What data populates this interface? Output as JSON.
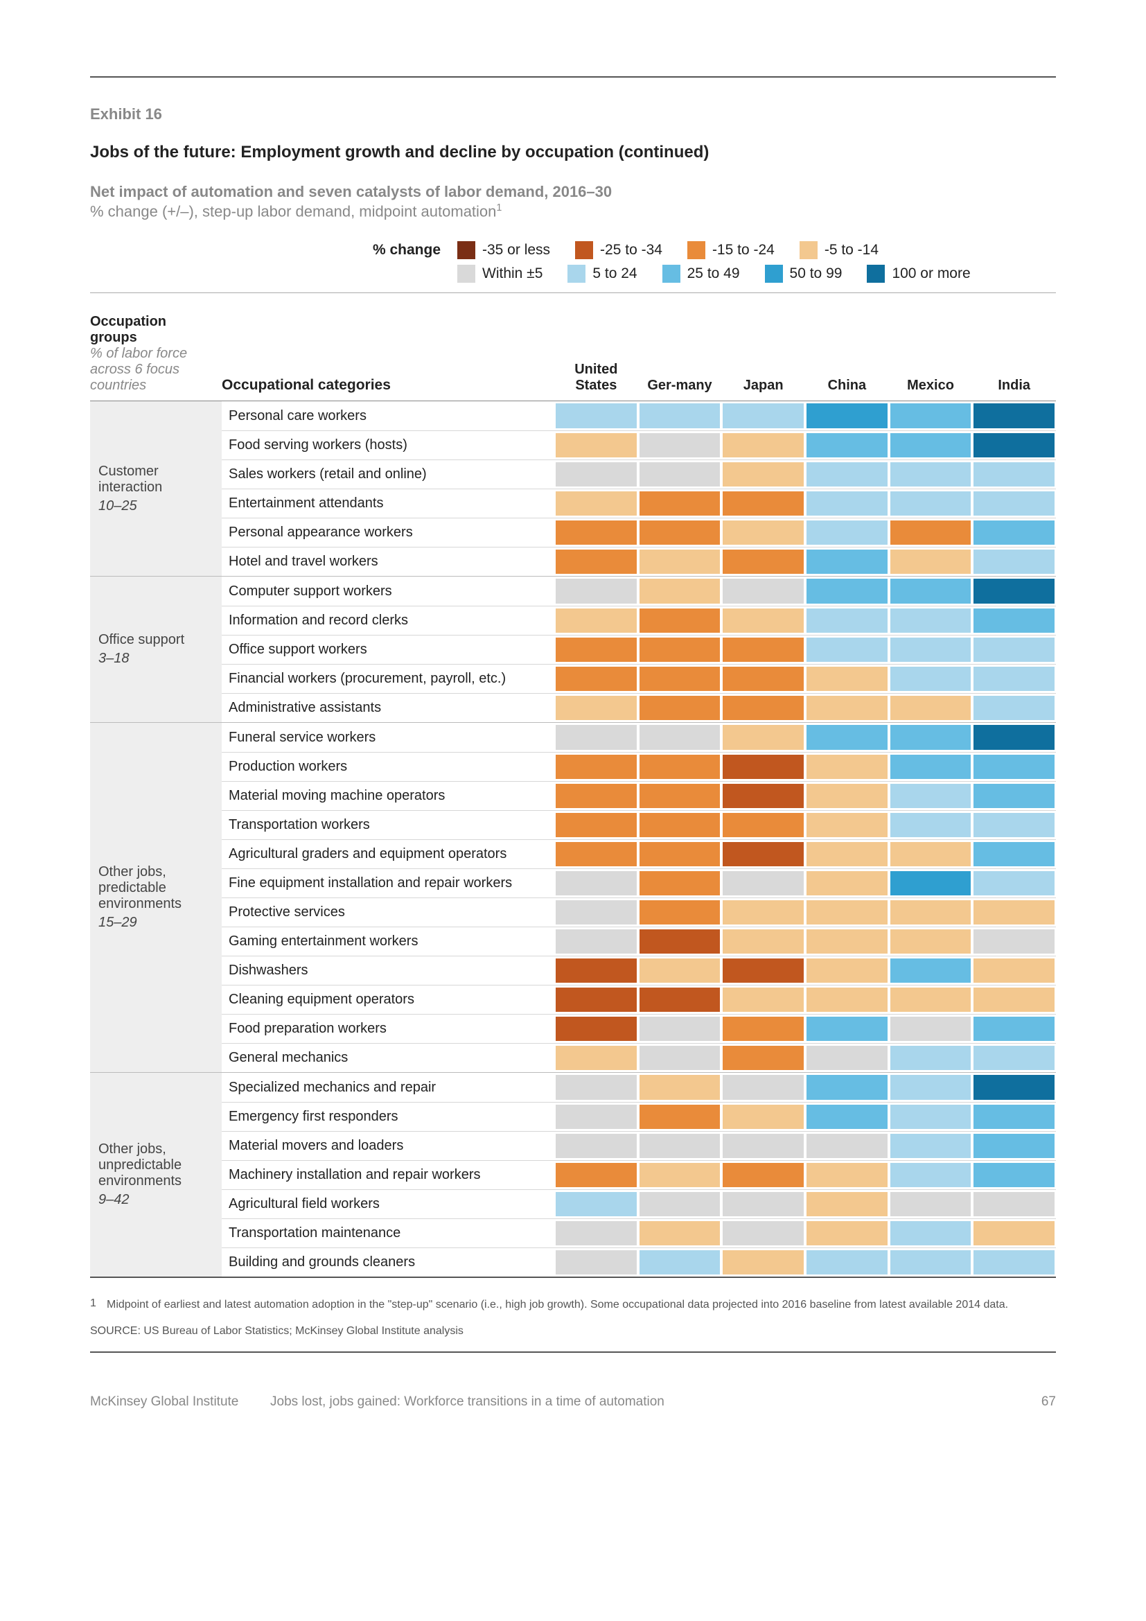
{
  "colors": {
    "b1": "#7a2e15",
    "b2": "#c1571f",
    "b3": "#e98b3a",
    "b4": "#f3c88f",
    "b5": "#d9d9d9",
    "b6": "#a9d6ec",
    "b7": "#66bde3",
    "b8": "#2f9fd0",
    "b9": "#0f6f9e"
  },
  "exhibit_label": "Exhibit 16",
  "title": "Jobs of the future: Employment growth and decline by occupation (continued)",
  "subtitle_line1": "Net impact of automation and seven catalysts of labor demand, 2016–30",
  "subtitle_line2": "% change (+/–), step-up labor demand, midpoint automation",
  "subtitle_sup": "1",
  "legend": {
    "pct_label": "% change",
    "row1": [
      {
        "c": "b1",
        "label": "-35 or less"
      },
      {
        "c": "b2",
        "label": "-25 to -34"
      },
      {
        "c": "b3",
        "label": "-15 to -24"
      },
      {
        "c": "b4",
        "label": "-5 to -14"
      }
    ],
    "row2": [
      {
        "c": "b5",
        "label": "Within ±5"
      },
      {
        "c": "b6",
        "label": "5 to 24"
      },
      {
        "c": "b7",
        "label": "25 to 49"
      },
      {
        "c": "b8",
        "label": "50 to 99"
      },
      {
        "c": "b9",
        "label": "100 or more"
      }
    ]
  },
  "header": {
    "groups_bold": "Occupation groups",
    "groups_ital": "% of labor force across 6 focus countries",
    "cats_label": "Occupational categories",
    "countries": [
      "United States",
      "Ger-\nmany",
      "Japan",
      "China",
      "Mexico",
      "India"
    ]
  },
  "groups": [
    {
      "name": "Customer interaction",
      "range": "10–25",
      "rows": [
        {
          "cat": "Personal care workers",
          "cells": [
            "b6",
            "b6",
            "b6",
            "b8",
            "b7",
            "b9"
          ]
        },
        {
          "cat": "Food serving workers (hosts)",
          "cells": [
            "b4",
            "b5",
            "b4",
            "b7",
            "b7",
            "b9"
          ]
        },
        {
          "cat": "Sales workers (retail and online)",
          "cells": [
            "b5",
            "b5",
            "b4",
            "b6",
            "b6",
            "b6"
          ]
        },
        {
          "cat": "Entertainment attendants",
          "cells": [
            "b4",
            "b3",
            "b3",
            "b6",
            "b6",
            "b6"
          ]
        },
        {
          "cat": "Personal appearance workers",
          "cells": [
            "b3",
            "b3",
            "b4",
            "b6",
            "b3",
            "b7"
          ]
        },
        {
          "cat": "Hotel and travel workers",
          "cells": [
            "b3",
            "b4",
            "b3",
            "b7",
            "b4",
            "b6"
          ]
        }
      ]
    },
    {
      "name": "Office support",
      "range": "3–18",
      "rows": [
        {
          "cat": "Computer support workers",
          "cells": [
            "b5",
            "b4",
            "b5",
            "b7",
            "b7",
            "b9"
          ]
        },
        {
          "cat": "Information and record clerks",
          "cells": [
            "b4",
            "b3",
            "b4",
            "b6",
            "b6",
            "b7"
          ]
        },
        {
          "cat": "Office support workers",
          "cells": [
            "b3",
            "b3",
            "b3",
            "b6",
            "b6",
            "b6"
          ]
        },
        {
          "cat": "Financial workers (procurement, payroll, etc.)",
          "cells": [
            "b3",
            "b3",
            "b3",
            "b4",
            "b6",
            "b6"
          ]
        },
        {
          "cat": "Administrative assistants",
          "cells": [
            "b4",
            "b3",
            "b3",
            "b4",
            "b4",
            "b6"
          ]
        }
      ]
    },
    {
      "name": "Other jobs, predictable environments",
      "range": "15–29",
      "rows": [
        {
          "cat": "Funeral service workers",
          "cells": [
            "b5",
            "b5",
            "b4",
            "b7",
            "b7",
            "b9"
          ]
        },
        {
          "cat": "Production workers",
          "cells": [
            "b3",
            "b3",
            "b2",
            "b4",
            "b7",
            "b7"
          ]
        },
        {
          "cat": "Material moving machine operators",
          "cells": [
            "b3",
            "b3",
            "b2",
            "b4",
            "b6",
            "b7"
          ]
        },
        {
          "cat": "Transportation workers",
          "cells": [
            "b3",
            "b3",
            "b3",
            "b4",
            "b6",
            "b6"
          ]
        },
        {
          "cat": "Agricultural graders and equipment operators",
          "cells": [
            "b3",
            "b3",
            "b2",
            "b4",
            "b4",
            "b7"
          ]
        },
        {
          "cat": "Fine equipment installation and repair workers",
          "cells": [
            "b5",
            "b3",
            "b5",
            "b4",
            "b8",
            "b6"
          ]
        },
        {
          "cat": "Protective services",
          "cells": [
            "b5",
            "b3",
            "b4",
            "b4",
            "b4",
            "b4"
          ]
        },
        {
          "cat": "Gaming entertainment workers",
          "cells": [
            "b5",
            "b2",
            "b4",
            "b4",
            "b4",
            "b5"
          ]
        },
        {
          "cat": "Dishwashers",
          "cells": [
            "b2",
            "b4",
            "b2",
            "b4",
            "b7",
            "b4"
          ]
        },
        {
          "cat": "Cleaning equipment operators",
          "cells": [
            "b2",
            "b2",
            "b4",
            "b4",
            "b4",
            "b4"
          ]
        },
        {
          "cat": "Food preparation workers",
          "cells": [
            "b2",
            "b5",
            "b3",
            "b7",
            "b5",
            "b7"
          ]
        },
        {
          "cat": "General mechanics",
          "cells": [
            "b4",
            "b5",
            "b3",
            "b5",
            "b6",
            "b6"
          ]
        }
      ]
    },
    {
      "name": "Other jobs, unpredictable environments",
      "range": "9–42",
      "rows": [
        {
          "cat": "Specialized mechanics and repair",
          "cells": [
            "b5",
            "b4",
            "b5",
            "b7",
            "b6",
            "b9"
          ]
        },
        {
          "cat": "Emergency first responders",
          "cells": [
            "b5",
            "b3",
            "b4",
            "b7",
            "b6",
            "b7"
          ]
        },
        {
          "cat": "Material movers and loaders",
          "cells": [
            "b5",
            "b5",
            "b5",
            "b5",
            "b6",
            "b7"
          ]
        },
        {
          "cat": "Machinery installation and repair workers",
          "cells": [
            "b3",
            "b4",
            "b3",
            "b4",
            "b6",
            "b7"
          ]
        },
        {
          "cat": "Agricultural field workers",
          "cells": [
            "b6",
            "b5",
            "b5",
            "b4",
            "b5",
            "b5"
          ]
        },
        {
          "cat": "Transportation maintenance",
          "cells": [
            "b5",
            "b4",
            "b5",
            "b4",
            "b6",
            "b4"
          ]
        },
        {
          "cat": "Building and grounds cleaners",
          "cells": [
            "b5",
            "b6",
            "b4",
            "b6",
            "b6",
            "b6"
          ]
        }
      ]
    }
  ],
  "footnote_num": "1",
  "footnote_text": "Midpoint of earliest and latest automation adoption in the \"step-up\" scenario (i.e., high job growth). Some occupational data projected into 2016 baseline from latest available 2014 data.",
  "source": "SOURCE: US Bureau of Labor Statistics; McKinsey Global Institute analysis",
  "footer_left": "McKinsey Global Institute",
  "footer_mid": "Jobs lost, jobs gained: Workforce transitions in a time of automation",
  "footer_page": "67"
}
